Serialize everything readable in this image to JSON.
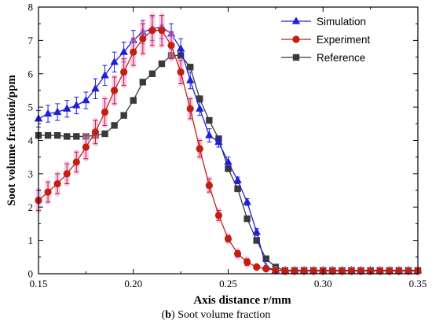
{
  "caption": {
    "label": "b",
    "open": "(",
    "close": ")",
    "text": "Soot volume fraction"
  },
  "colors": {
    "simulation": "#1f1fd9",
    "experiment": "#c41e0e",
    "reference": "#3a3a3a",
    "error_glow": "#f0a0f0"
  },
  "chart_data": {
    "type": "line",
    "title": "",
    "xlabel": "Axis distance r/mm",
    "ylabel": "Soot volume fraction/ppm",
    "xlim": [
      0.15,
      0.35
    ],
    "ylim": [
      0,
      8
    ],
    "x_ticks": [
      "0.15",
      "0.20",
      "0.25",
      "0.30",
      "0.35"
    ],
    "y_ticks": [
      "0",
      "1",
      "2",
      "3",
      "4",
      "5",
      "6",
      "7",
      "8"
    ],
    "legend_position": "top-right",
    "grid": false,
    "series": [
      {
        "name": "Simulation",
        "marker": "triangle",
        "color": "#1f1fd9",
        "x": [
          0.15,
          0.155,
          0.16,
          0.165,
          0.17,
          0.175,
          0.18,
          0.185,
          0.19,
          0.195,
          0.2,
          0.205,
          0.21,
          0.215,
          0.22,
          0.225,
          0.23,
          0.235,
          0.24,
          0.245,
          0.25,
          0.255,
          0.26,
          0.265,
          0.27,
          0.275,
          0.28,
          0.285,
          0.29,
          0.295,
          0.3,
          0.305,
          0.31,
          0.315,
          0.32,
          0.325,
          0.33,
          0.335,
          0.34,
          0.345,
          0.35
        ],
        "y": [
          4.65,
          4.8,
          4.85,
          4.95,
          5.05,
          5.2,
          5.55,
          5.95,
          6.35,
          6.65,
          7.0,
          7.25,
          7.35,
          7.4,
          7.2,
          6.75,
          5.8,
          4.95,
          4.15,
          3.95,
          3.35,
          2.8,
          2.15,
          1.25,
          0.2,
          0.1,
          0.1,
          0.1,
          0.1,
          0.1,
          0.1,
          0.1,
          0.1,
          0.1,
          0.1,
          0.1,
          0.1,
          0.1,
          0.1,
          0.1,
          0.1
        ],
        "err": [
          0.25,
          0.25,
          0.25,
          0.25,
          0.25,
          0.25,
          0.3,
          0.3,
          0.3,
          0.3,
          0.3,
          0.35,
          0.35,
          0.35,
          0.3,
          0.3,
          0.25,
          0.2,
          0.2,
          0.15,
          0.15,
          0.1,
          0.1,
          0.1,
          0.05,
          0.05,
          0.05,
          0.05,
          0.05,
          0.05,
          0.05,
          0.05,
          0.05,
          0.05,
          0.05,
          0.05,
          0.05,
          0.05,
          0.05,
          0.05,
          0.05
        ]
      },
      {
        "name": "Experiment",
        "marker": "circle",
        "color": "#c41e0e",
        "x": [
          0.15,
          0.155,
          0.16,
          0.165,
          0.17,
          0.175,
          0.18,
          0.185,
          0.19,
          0.195,
          0.2,
          0.205,
          0.21,
          0.215,
          0.22,
          0.225,
          0.23,
          0.235,
          0.24,
          0.245,
          0.25,
          0.255,
          0.26,
          0.265,
          0.27,
          0.275,
          0.28,
          0.285,
          0.29,
          0.295,
          0.3,
          0.305,
          0.31,
          0.315,
          0.32,
          0.325,
          0.33,
          0.335,
          0.34,
          0.345,
          0.35
        ],
        "y": [
          2.2,
          2.45,
          2.7,
          3.0,
          3.35,
          3.8,
          4.25,
          4.85,
          5.5,
          6.05,
          6.65,
          7.05,
          7.3,
          7.3,
          6.85,
          6.05,
          4.95,
          3.75,
          2.65,
          1.75,
          1.05,
          0.6,
          0.35,
          0.2,
          0.15,
          0.1,
          0.08,
          0.08,
          0.08,
          0.08,
          0.08,
          0.08,
          0.08,
          0.08,
          0.08,
          0.08,
          0.08,
          0.08,
          0.08,
          0.08,
          0.08
        ],
        "err": [
          0.3,
          0.3,
          0.3,
          0.3,
          0.3,
          0.35,
          0.35,
          0.4,
          0.4,
          0.4,
          0.4,
          0.45,
          0.45,
          0.45,
          0.4,
          0.35,
          0.3,
          0.25,
          0.2,
          0.15,
          0.1,
          0.1,
          0.1,
          0.05,
          0.05,
          0.05,
          0.05,
          0.05,
          0.05,
          0.05,
          0.05,
          0.05,
          0.05,
          0.05,
          0.05,
          0.05,
          0.05,
          0.05,
          0.05,
          0.05,
          0.05
        ]
      },
      {
        "name": "Reference",
        "marker": "square",
        "color": "#3a3a3a",
        "x": [
          0.15,
          0.155,
          0.16,
          0.165,
          0.17,
          0.175,
          0.18,
          0.185,
          0.19,
          0.195,
          0.2,
          0.205,
          0.21,
          0.215,
          0.22,
          0.225,
          0.23,
          0.235,
          0.24,
          0.245,
          0.25,
          0.255,
          0.26,
          0.265,
          0.27,
          0.275,
          0.28,
          0.285,
          0.29,
          0.295,
          0.3,
          0.305,
          0.31,
          0.315,
          0.32,
          0.325,
          0.33,
          0.335,
          0.34,
          0.345,
          0.35
        ],
        "y": [
          4.15,
          4.15,
          4.15,
          4.12,
          4.12,
          4.12,
          4.15,
          4.2,
          4.45,
          4.75,
          5.2,
          5.75,
          6.0,
          6.3,
          6.55,
          6.55,
          6.2,
          5.25,
          4.6,
          4.05,
          3.15,
          2.55,
          1.65,
          1.0,
          0.45,
          0.2,
          0.1,
          0.1,
          0.1,
          0.1,
          0.1,
          0.1,
          0.1,
          0.1,
          0.1,
          0.1,
          0.1,
          0.1,
          0.1,
          0.1,
          0.1
        ]
      }
    ]
  }
}
